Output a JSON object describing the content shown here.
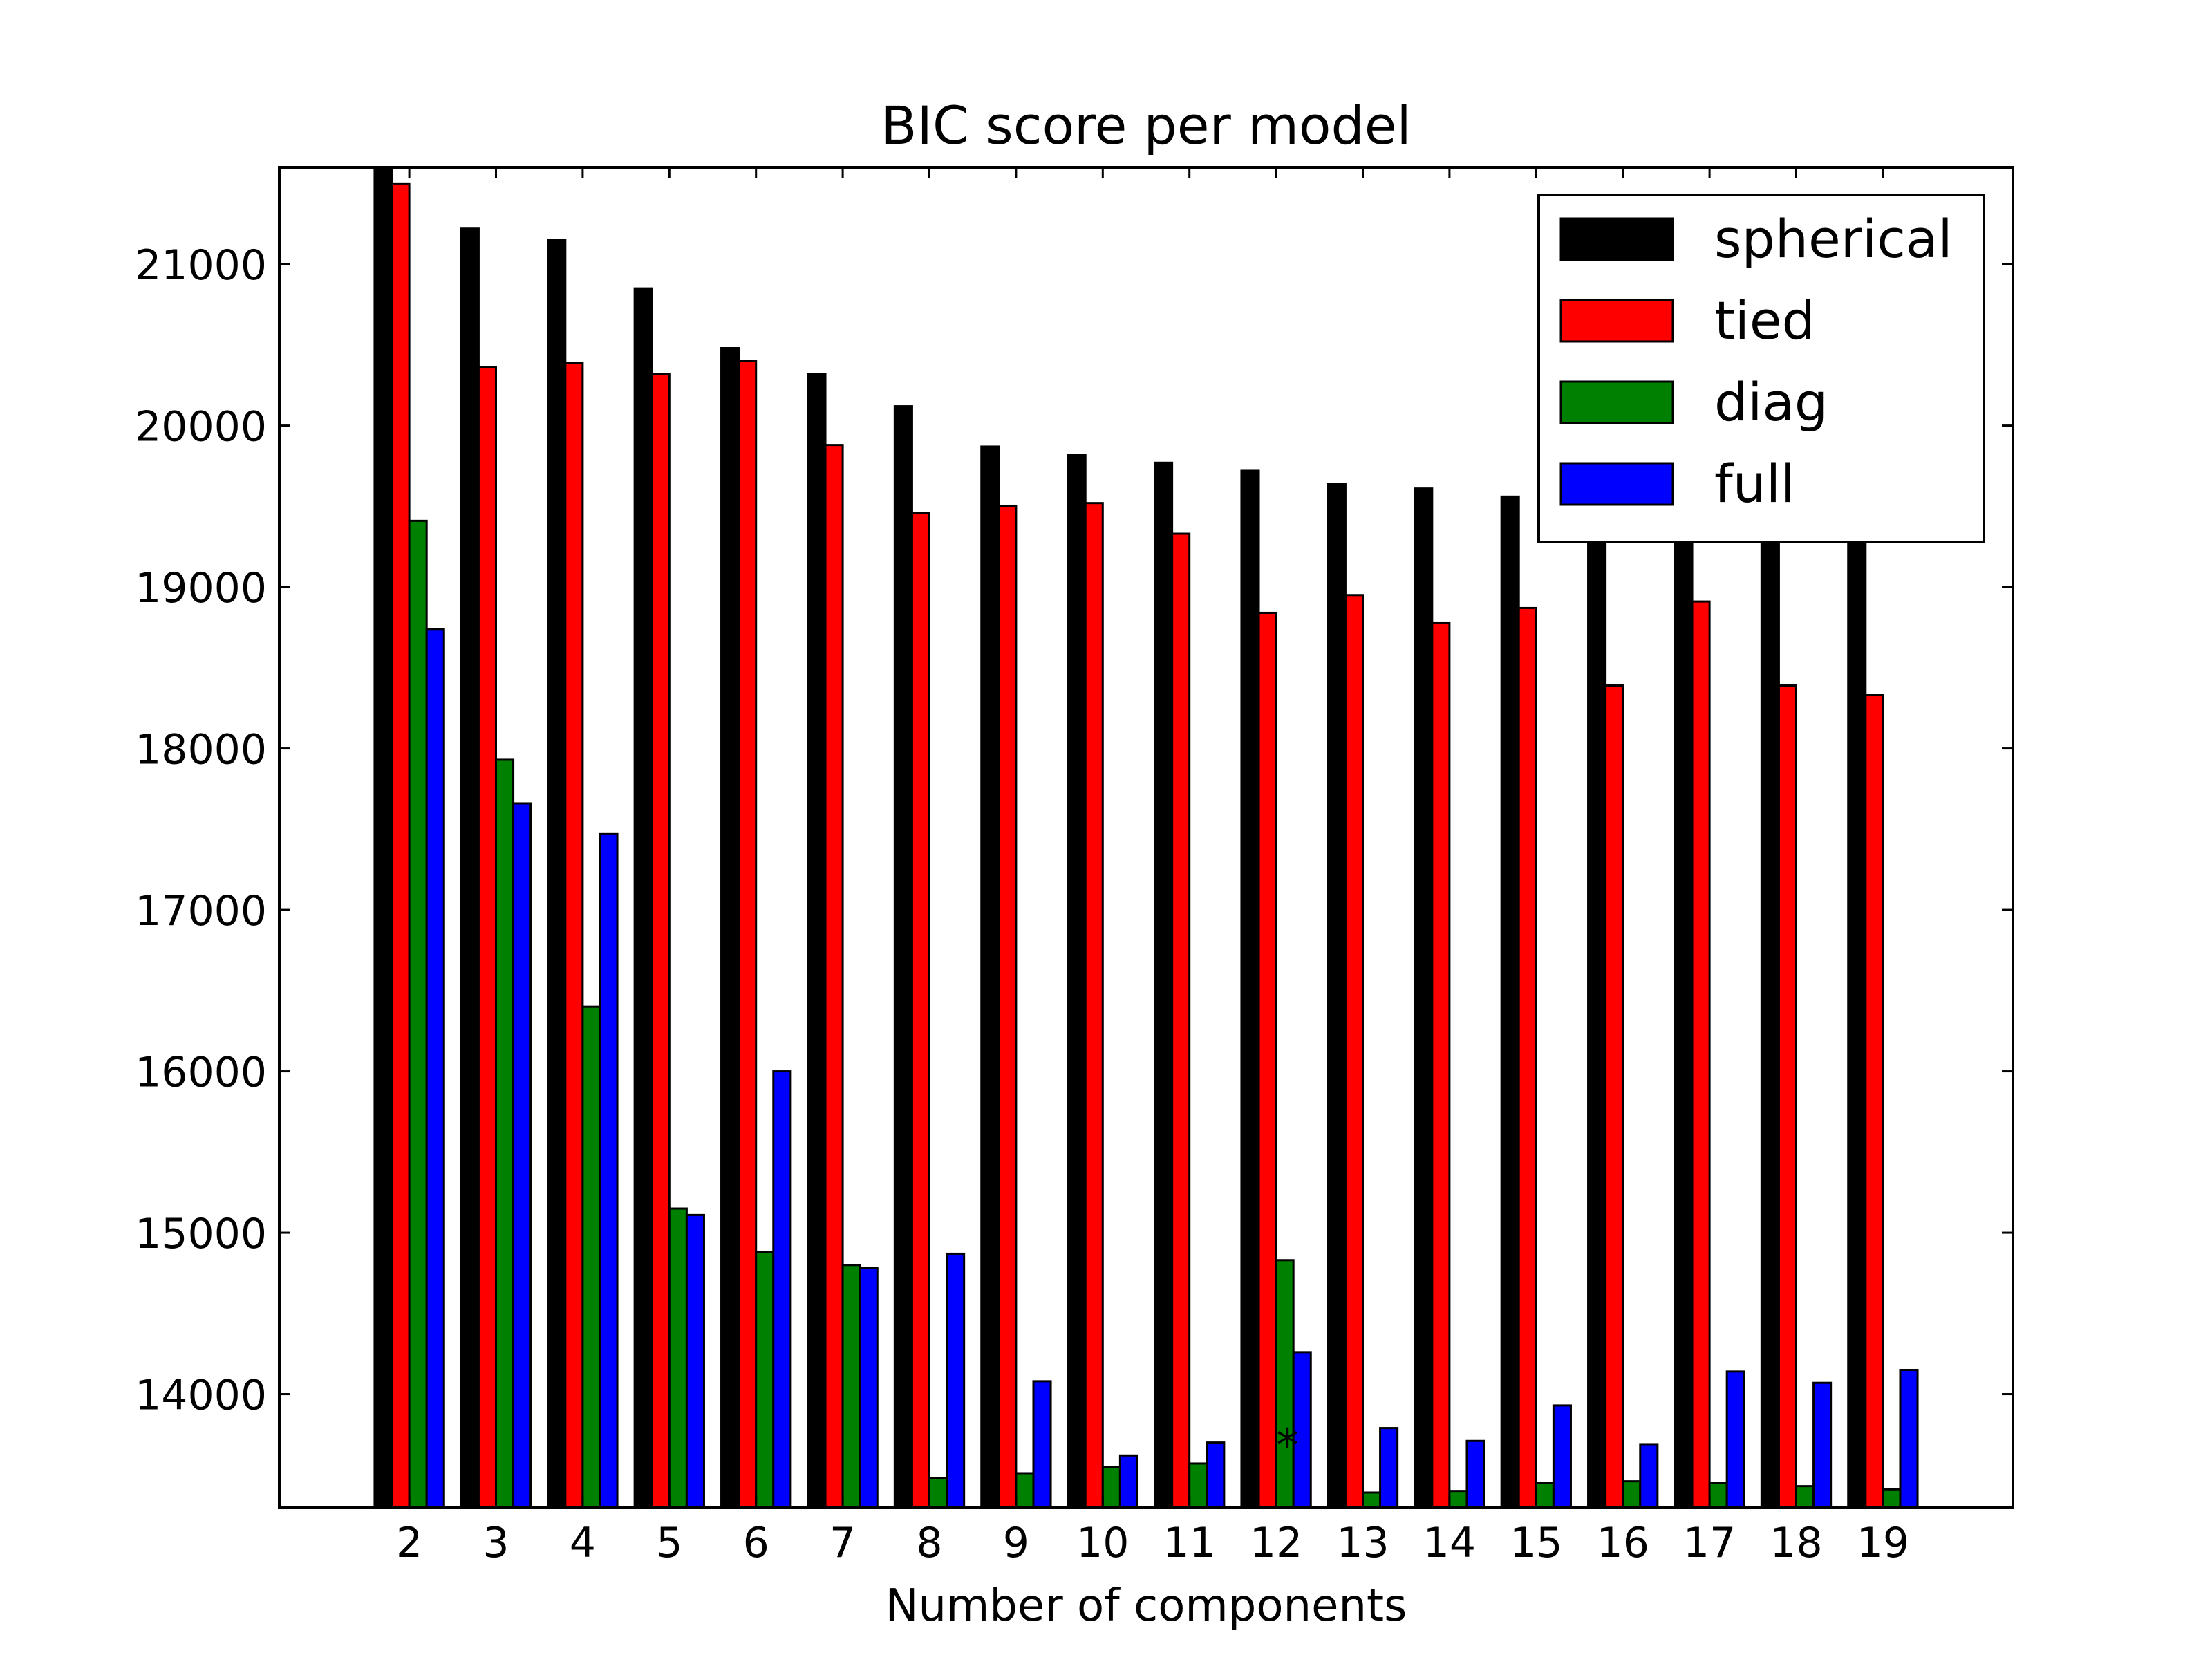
{
  "chart_data": {
    "type": "bar",
    "title": "BIC score per model",
    "xlabel": "Number of components",
    "ylabel": "",
    "categories": [
      "2",
      "3",
      "4",
      "5",
      "6",
      "7",
      "8",
      "9",
      "10",
      "11",
      "12",
      "13",
      "14",
      "15",
      "16",
      "17",
      "18",
      "19"
    ],
    "ylim": [
      13300,
      21600
    ],
    "yticks": [
      14000,
      15000,
      16000,
      17000,
      18000,
      19000,
      20000,
      21000
    ],
    "ytick_labels": [
      "14000",
      "15000",
      "16000",
      "17000",
      "18000",
      "19000",
      "20000",
      "21000"
    ],
    "grid": false,
    "legend_position": "top-right",
    "series": [
      {
        "name": "spherical",
        "color": "#000000",
        "values": [
          21610,
          21220,
          21150,
          20850,
          20480,
          20320,
          20120,
          19870,
          19820,
          19770,
          19720,
          19640,
          19610,
          19560,
          19530,
          19500,
          19480,
          19470
        ]
      },
      {
        "name": "tied",
        "color": "#ff0000",
        "values": [
          21500,
          20360,
          20390,
          20320,
          20400,
          19880,
          19460,
          19500,
          19520,
          19330,
          18840,
          18950,
          18780,
          18870,
          18390,
          18910,
          18390,
          18330
        ]
      },
      {
        "name": "diag",
        "color": "#008000",
        "values": [
          19410,
          17930,
          16400,
          15150,
          14880,
          14800,
          13480,
          13510,
          13550,
          13570,
          14830,
          13390,
          13400,
          13450,
          13460,
          13450,
          13430,
          13410
        ]
      },
      {
        "name": "full",
        "color": "#0000ff",
        "values": [
          18740,
          17660,
          17470,
          15110,
          16000,
          14780,
          14870,
          14080,
          13620,
          13700,
          14260,
          13790,
          13710,
          13930,
          13690,
          14140,
          14070,
          14150
        ]
      }
    ],
    "annotation": {
      "text": "*",
      "category": "12",
      "y": 13760
    }
  }
}
